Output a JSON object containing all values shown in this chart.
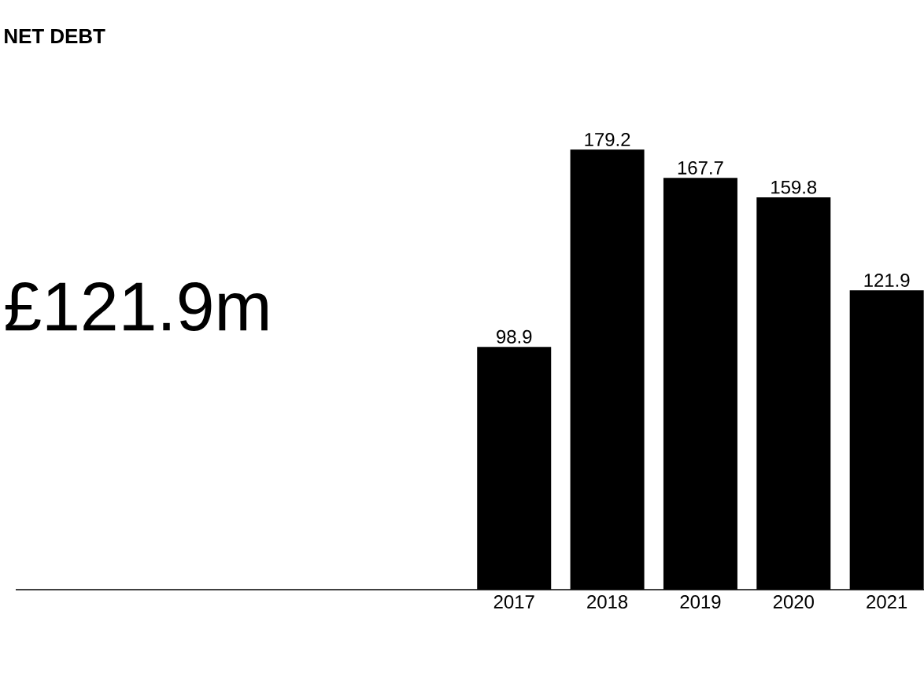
{
  "chart_data": {
    "type": "bar",
    "title": "NET DEBT",
    "annotations": [
      "£121.9m"
    ],
    "categories": [
      "2017",
      "2018",
      "2019",
      "2020",
      "2021"
    ],
    "values": [
      98.9,
      179.2,
      167.7,
      159.8,
      121.9
    ],
    "color": "#000000",
    "data_labels": true,
    "tick_labels": "x"
  }
}
